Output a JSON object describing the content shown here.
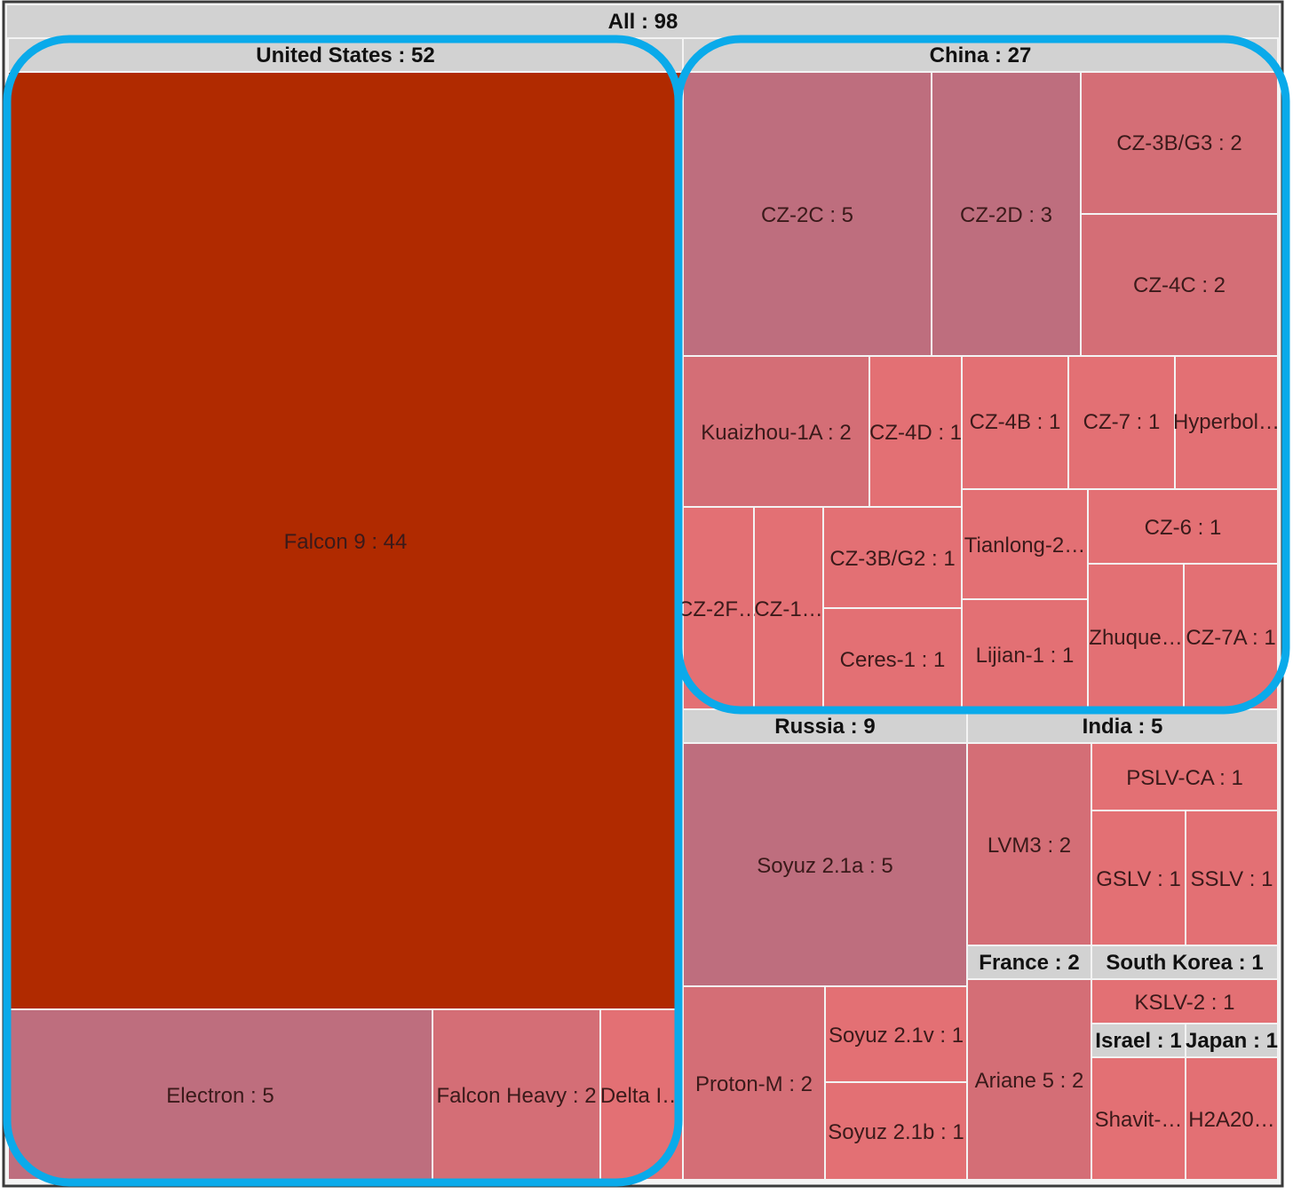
{
  "chart_data": {
    "type": "treemap",
    "root": {
      "name": "All",
      "value": 98,
      "label": "All : 98"
    },
    "groups": [
      {
        "id": "us",
        "name": "United States",
        "value": 52,
        "label": "United States : 52",
        "children": [
          {
            "id": "falcon9",
            "name": "Falcon 9",
            "value": 44,
            "label": "Falcon 9 : 44"
          },
          {
            "id": "electron",
            "name": "Electron",
            "value": 5,
            "label": "Electron : 5"
          },
          {
            "id": "falconheavy",
            "name": "Falcon Heavy",
            "value": 2,
            "label": "Falcon Heavy : 2"
          },
          {
            "id": "delta",
            "name": "Delta I…",
            "value": 1,
            "label": "Delta I…"
          }
        ]
      },
      {
        "id": "china",
        "name": "China",
        "value": 27,
        "label": "China : 27",
        "children": [
          {
            "id": "cz2c",
            "name": "CZ-2C",
            "value": 5,
            "label": "CZ-2C : 5"
          },
          {
            "id": "cz2d",
            "name": "CZ-2D",
            "value": 3,
            "label": "CZ-2D : 3"
          },
          {
            "id": "cz3bg3",
            "name": "CZ-3B/G3",
            "value": 2,
            "label": "CZ-3B/G3 : 2"
          },
          {
            "id": "cz4c",
            "name": "CZ-4C",
            "value": 2,
            "label": "CZ-4C : 2"
          },
          {
            "id": "kuaizhou",
            "name": "Kuaizhou-1A",
            "value": 2,
            "label": "Kuaizhou-1A : 2"
          },
          {
            "id": "cz4d",
            "name": "CZ-4D",
            "value": 1,
            "label": "CZ-4D : 1"
          },
          {
            "id": "cz4b",
            "name": "CZ-4B",
            "value": 1,
            "label": "CZ-4B : 1"
          },
          {
            "id": "cz7",
            "name": "CZ-7",
            "value": 1,
            "label": "CZ-7 : 1"
          },
          {
            "id": "hyperbola",
            "name": "Hyperbol…",
            "value": 1,
            "label": "Hyperbol…"
          },
          {
            "id": "cz2f",
            "name": "CZ-2F…",
            "value": 1,
            "label": "CZ-2F…"
          },
          {
            "id": "cz1",
            "name": "CZ-1…",
            "value": 1,
            "label": "CZ-1…"
          },
          {
            "id": "cz3bg2",
            "name": "CZ-3B/G2",
            "value": 1,
            "label": "CZ-3B/G2 : 1"
          },
          {
            "id": "ceres",
            "name": "Ceres-1",
            "value": 1,
            "label": "Ceres-1 : 1"
          },
          {
            "id": "tianlong",
            "name": "Tianlong-2…",
            "value": 1,
            "label": "Tianlong-2…"
          },
          {
            "id": "lijian",
            "name": "Lijian-1",
            "value": 1,
            "label": "Lijian-1 : 1"
          },
          {
            "id": "cz6",
            "name": "CZ-6",
            "value": 1,
            "label": "CZ-6 : 1"
          },
          {
            "id": "zhuque",
            "name": "Zhuque…",
            "value": 1,
            "label": "Zhuque…"
          },
          {
            "id": "cz7a",
            "name": "CZ-7A",
            "value": 1,
            "label": "CZ-7A : 1"
          }
        ]
      },
      {
        "id": "russia",
        "name": "Russia",
        "value": 9,
        "label": "Russia : 9",
        "children": [
          {
            "id": "soyuz21a",
            "name": "Soyuz 2.1a",
            "value": 5,
            "label": "Soyuz 2.1a : 5"
          },
          {
            "id": "protonm",
            "name": "Proton-M",
            "value": 2,
            "label": "Proton-M : 2"
          },
          {
            "id": "soyuz21v",
            "name": "Soyuz 2.1v",
            "value": 1,
            "label": "Soyuz 2.1v : 1"
          },
          {
            "id": "soyuz21b",
            "name": "Soyuz 2.1b",
            "value": 1,
            "label": "Soyuz 2.1b : 1"
          }
        ]
      },
      {
        "id": "india",
        "name": "India",
        "value": 5,
        "label": "India : 5",
        "children": [
          {
            "id": "lvm3",
            "name": "LVM3",
            "value": 2,
            "label": "LVM3 : 2"
          },
          {
            "id": "pslvca",
            "name": "PSLV-CA",
            "value": 1,
            "label": "PSLV-CA : 1"
          },
          {
            "id": "gslv",
            "name": "GSLV",
            "value": 1,
            "label": "GSLV : 1"
          },
          {
            "id": "sslv",
            "name": "SSLV",
            "value": 1,
            "label": "SSLV : 1"
          }
        ]
      },
      {
        "id": "france",
        "name": "France",
        "value": 2,
        "label": "France : 2",
        "children": [
          {
            "id": "ariane5",
            "name": "Ariane 5",
            "value": 2,
            "label": "Ariane 5 : 2"
          }
        ]
      },
      {
        "id": "skorea",
        "name": "South Korea",
        "value": 1,
        "label": "South Korea : 1",
        "children": [
          {
            "id": "kslv2",
            "name": "KSLV-2",
            "value": 1,
            "label": "KSLV-2 : 1"
          }
        ]
      },
      {
        "id": "israel",
        "name": "Israel",
        "value": 1,
        "label": "Israel : 1",
        "children": [
          {
            "id": "shavit",
            "name": "Shavit-…",
            "value": 1,
            "label": "Shavit-…"
          }
        ]
      },
      {
        "id": "japan",
        "name": "Japan",
        "value": 1,
        "label": "Japan : 1",
        "children": [
          {
            "id": "h2a",
            "name": "H2A20…",
            "value": 1,
            "label": "H2A20…"
          }
        ]
      }
    ],
    "highlights": [
      "United States",
      "China"
    ],
    "colors": {
      "high": "#b02a00",
      "mid": "#be6e7e",
      "midlight": "#d46e76",
      "low": "#e37074",
      "header": "#d2d2d2",
      "border": "#f3f3f3",
      "highlight_outline": "#0aaaea"
    }
  }
}
